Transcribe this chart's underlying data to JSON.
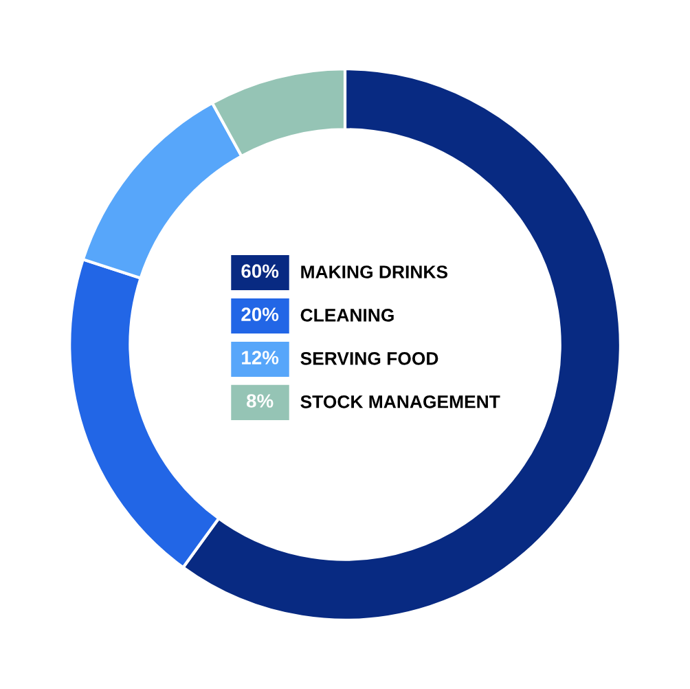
{
  "chart_data": {
    "type": "donut",
    "categories": [
      "MAKING DRINKS",
      "CLEANING",
      "SERVING FOOD",
      "STOCK MANAGEMENT"
    ],
    "values": [
      60,
      20,
      12,
      8
    ],
    "value_labels": [
      "60%",
      "20%",
      "12%",
      "8%"
    ],
    "colors": [
      "#082a82",
      "#2266e6",
      "#57a6fa",
      "#95c4b5"
    ],
    "legend": "center"
  }
}
